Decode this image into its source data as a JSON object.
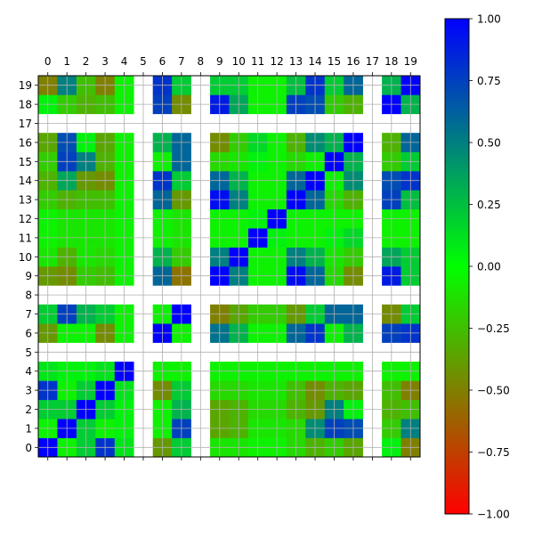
{
  "chart_data": {
    "type": "heatmap",
    "title": "",
    "xlabel": "",
    "ylabel": "",
    "x_ticks": [
      0,
      1,
      2,
      3,
      4,
      5,
      6,
      7,
      8,
      9,
      10,
      11,
      12,
      13,
      14,
      15,
      16,
      17,
      18,
      19
    ],
    "y_ticks": [
      0,
      1,
      2,
      3,
      4,
      5,
      6,
      7,
      8,
      9,
      10,
      11,
      12,
      13,
      14,
      15,
      16,
      17,
      18,
      19
    ],
    "x_axis_position": "top",
    "y_axis_order": "ascending-upward",
    "grid": true,
    "missing_indices": [
      5,
      8,
      17
    ],
    "colorbar": {
      "min": -1.0,
      "max": 1.0,
      "ticks": [
        -1.0,
        -0.75,
        -0.5,
        -0.25,
        0.0,
        0.25,
        0.5,
        0.75,
        1.0
      ],
      "tick_labels": [
        "−1.00",
        "−0.75",
        "−0.50",
        "−0.25",
        "0.00",
        "0.25",
        "0.50",
        "0.75",
        "1.00"
      ],
      "colors": {
        "low": "#ff0000",
        "mid": "#00ff00",
        "high": "#0000ff"
      },
      "location": "right"
    },
    "matrix": [
      [
        1.0,
        -0.05,
        0.2,
        0.8,
        0.1,
        null,
        -0.4,
        0.2,
        null,
        -0.1,
        -0.1,
        -0.05,
        -0.05,
        -0.15,
        -0.3,
        -0.2,
        -0.35,
        null,
        0.05,
        -0.5
      ],
      [
        -0.05,
        1.0,
        0.2,
        -0.05,
        0.05,
        null,
        -0.05,
        0.75,
        null,
        -0.35,
        -0.3,
        -0.1,
        -0.1,
        -0.15,
        0.45,
        0.75,
        0.7,
        null,
        -0.2,
        0.5
      ],
      [
        0.2,
        0.2,
        1.0,
        0.2,
        0.05,
        null,
        -0.05,
        0.3,
        null,
        -0.35,
        -0.3,
        -0.15,
        -0.15,
        -0.3,
        -0.4,
        0.5,
        0.05,
        null,
        -0.3,
        -0.25
      ],
      [
        0.8,
        -0.05,
        0.2,
        1.0,
        0.1,
        null,
        -0.45,
        0.2,
        null,
        -0.15,
        -0.15,
        -0.1,
        -0.1,
        -0.25,
        -0.45,
        -0.3,
        -0.35,
        null,
        -0.25,
        -0.5
      ],
      [
        0.1,
        0.05,
        0.05,
        0.1,
        1.0,
        null,
        -0.05,
        -0.05,
        null,
        -0.05,
        -0.05,
        -0.05,
        -0.05,
        -0.05,
        -0.05,
        -0.05,
        -0.05,
        null,
        -0.05,
        -0.05
      ],
      [
        null,
        null,
        null,
        null,
        null,
        null,
        null,
        null,
        null,
        null,
        null,
        null,
        null,
        null,
        null,
        null,
        null,
        null,
        null,
        null
      ],
      [
        -0.4,
        -0.05,
        -0.05,
        -0.45,
        -0.05,
        null,
        1.0,
        -0.05,
        null,
        0.55,
        0.3,
        -0.05,
        -0.05,
        0.6,
        0.8,
        -0.05,
        0.3,
        null,
        0.75,
        0.8
      ],
      [
        0.2,
        0.75,
        0.3,
        0.2,
        -0.05,
        null,
        -0.05,
        1.0,
        null,
        -0.5,
        -0.35,
        -0.2,
        -0.2,
        -0.4,
        0.2,
        0.6,
        0.6,
        null,
        -0.45,
        0.2
      ],
      [
        null,
        null,
        null,
        null,
        null,
        null,
        null,
        null,
        null,
        null,
        null,
        null,
        null,
        null,
        null,
        null,
        null,
        null,
        null,
        null
      ],
      [
        -0.4,
        -0.45,
        -0.2,
        -0.25,
        -0.05,
        null,
        0.6,
        -0.55,
        null,
        1.0,
        0.5,
        -0.05,
        -0.05,
        0.95,
        0.6,
        -0.15,
        -0.45,
        null,
        0.9,
        0.2
      ],
      [
        -0.1,
        -0.3,
        -0.1,
        -0.15,
        -0.05,
        null,
        0.3,
        -0.2,
        null,
        0.5,
        1.0,
        -0.05,
        -0.05,
        0.5,
        0.3,
        -0.1,
        -0.2,
        null,
        0.35,
        0.2
      ],
      [
        -0.05,
        -0.1,
        -0.1,
        -0.1,
        -0.05,
        null,
        -0.05,
        -0.1,
        null,
        -0.05,
        -0.05,
        1.0,
        0.05,
        -0.05,
        -0.05,
        0.05,
        0.15,
        null,
        -0.05,
        -0.05
      ],
      [
        -0.05,
        -0.1,
        -0.1,
        -0.1,
        -0.05,
        null,
        -0.05,
        -0.1,
        null,
        -0.05,
        -0.05,
        0.05,
        1.0,
        -0.05,
        -0.05,
        -0.05,
        -0.05,
        null,
        -0.05,
        -0.05
      ],
      [
        -0.2,
        -0.3,
        -0.25,
        -0.25,
        -0.05,
        null,
        0.6,
        -0.4,
        null,
        0.95,
        0.5,
        -0.05,
        -0.05,
        1.0,
        0.6,
        -0.15,
        -0.3,
        null,
        0.75,
        0.25
      ],
      [
        -0.3,
        0.35,
        -0.4,
        -0.45,
        -0.05,
        null,
        0.8,
        0.2,
        null,
        0.6,
        0.3,
        -0.05,
        -0.05,
        0.6,
        1.0,
        -0.05,
        0.45,
        null,
        0.7,
        0.8
      ],
      [
        -0.2,
        0.75,
        0.5,
        -0.3,
        -0.05,
        null,
        -0.05,
        0.6,
        null,
        -0.15,
        -0.1,
        0.05,
        -0.05,
        -0.15,
        -0.05,
        1.0,
        0.3,
        null,
        -0.2,
        0.2
      ],
      [
        -0.35,
        0.7,
        0.05,
        -0.35,
        -0.05,
        null,
        0.3,
        0.6,
        null,
        -0.45,
        -0.2,
        0.15,
        -0.05,
        -0.3,
        0.45,
        0.3,
        1.0,
        null,
        -0.3,
        0.6
      ],
      [
        null,
        null,
        null,
        null,
        null,
        null,
        null,
        null,
        null,
        null,
        null,
        null,
        null,
        null,
        null,
        null,
        null,
        null,
        null,
        null
      ],
      [
        0.05,
        -0.2,
        -0.3,
        -0.25,
        -0.05,
        null,
        0.75,
        -0.45,
        null,
        0.9,
        0.35,
        -0.05,
        -0.05,
        0.75,
        0.7,
        -0.2,
        -0.3,
        null,
        1.0,
        0.3
      ],
      [
        -0.5,
        0.5,
        -0.25,
        -0.5,
        -0.05,
        null,
        0.8,
        0.2,
        null,
        0.2,
        0.2,
        -0.05,
        -0.05,
        0.25,
        0.8,
        0.2,
        0.6,
        null,
        0.3,
        1.0
      ]
    ]
  }
}
